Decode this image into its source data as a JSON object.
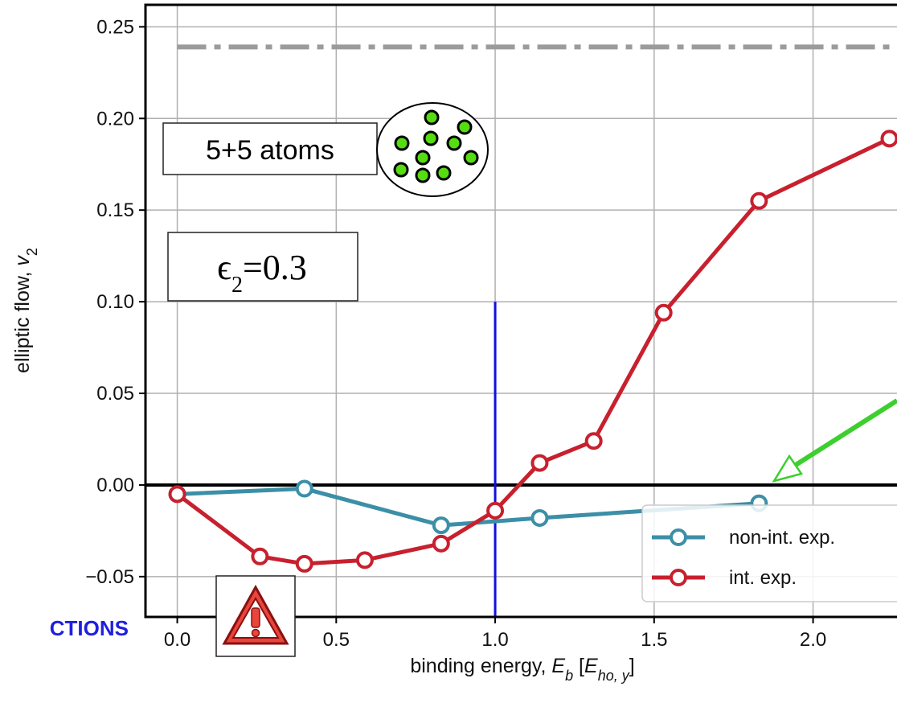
{
  "chart_data": {
    "type": "line",
    "xlabel_main": "binding energy, ",
    "xlabel_sym": "E",
    "xlabel_sub": "b",
    "xlabel_unit_open": " [",
    "xlabel_unit_sym": "E",
    "xlabel_unit_sub": "ho, y",
    "xlabel_unit_close": "]",
    "ylabel_main": "elliptic flow, ",
    "ylabel_sym": "v",
    "ylabel_sub": "2",
    "xlim": [
      -0.1,
      2.35
    ],
    "ylim": [
      -0.072,
      0.262
    ],
    "xticks": [
      0.0,
      0.5,
      1.0,
      1.5,
      2.0
    ],
    "xtick_labels": [
      "0.0",
      "0.5",
      "1.0",
      "1.5",
      "2.0"
    ],
    "yticks": [
      -0.05,
      0.0,
      0.05,
      0.1,
      0.15,
      0.2,
      0.25
    ],
    "ytick_labels": [
      "−0.05",
      "0.00",
      "0.05",
      "0.10",
      "0.15",
      "0.20",
      "0.25"
    ],
    "grid": true,
    "legend_position": "lower-right",
    "series": [
      {
        "name": "non-int. exp.",
        "color": "#3b8fa6",
        "x": [
          0.0,
          0.4,
          0.83,
          1.14,
          1.83
        ],
        "y": [
          -0.005,
          -0.002,
          -0.022,
          -0.018,
          -0.01
        ]
      },
      {
        "name": "int. exp.",
        "color": "#c8202e",
        "x": [
          0.0,
          0.26,
          0.4,
          0.59,
          0.83,
          1.0,
          1.14,
          1.31,
          1.53,
          1.83,
          2.24
        ],
        "y": [
          -0.005,
          -0.039,
          -0.043,
          -0.041,
          -0.032,
          -0.014,
          0.012,
          0.024,
          0.094,
          0.155,
          0.189
        ]
      }
    ],
    "reference_lines": {
      "dashdot_y": 0.239,
      "dashdot_x_range": [
        0.0,
        2.24
      ],
      "dashdot_color": "#9b9b9b",
      "zero_line_color": "#000000",
      "vertical_x": 1.0,
      "vertical_y_range": [
        -0.072,
        0.1
      ],
      "vertical_color": "#1010e0"
    },
    "annotations": {
      "atoms_label": "5+5 atoms",
      "epsilon_symbol": "ϵ",
      "epsilon_sub": "2",
      "epsilon_eq": "=0.3",
      "cut_text": "CTIONS",
      "warning_icon": "warning-triangle-icon",
      "arrow_color": "#3ccf2e",
      "atom_color": "#55dd11"
    }
  }
}
